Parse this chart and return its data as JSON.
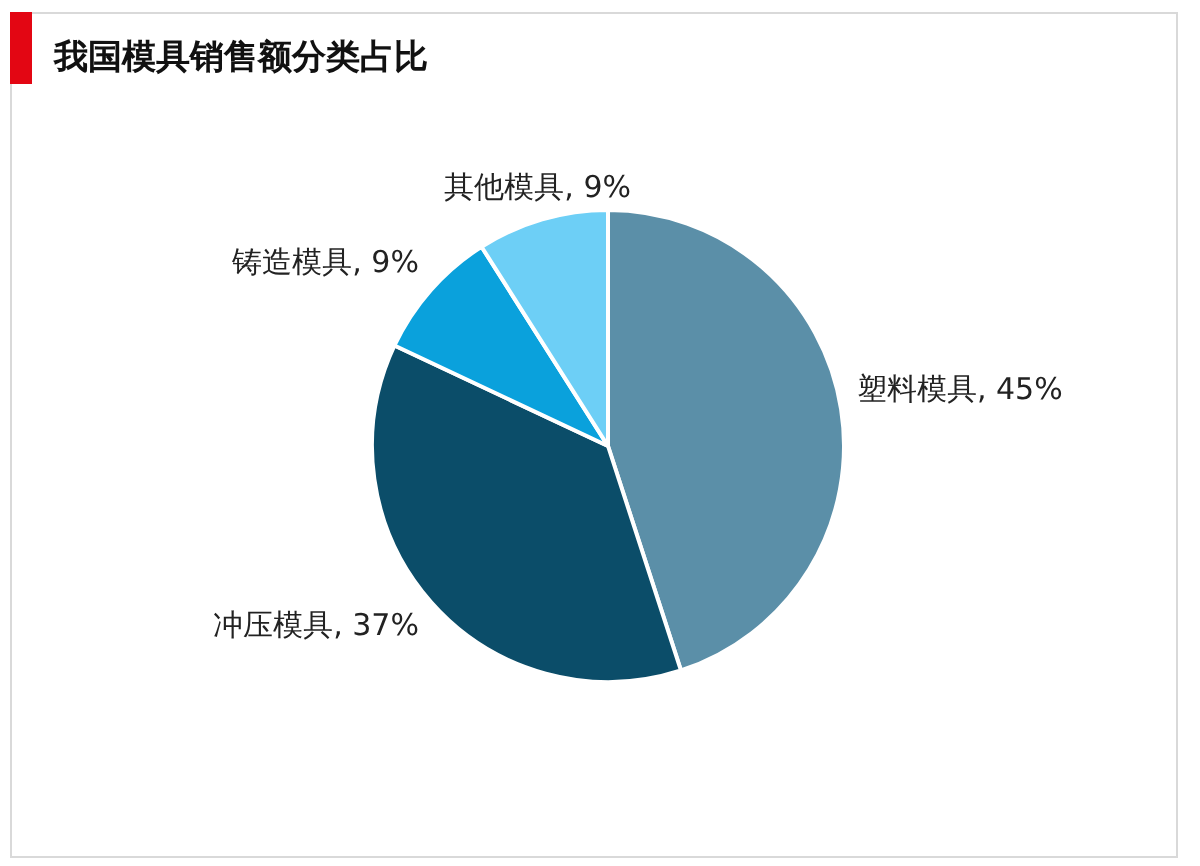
{
  "chart_data": {
    "type": "pie",
    "title": "我国模具销售额分类占比",
    "categories": [
      "塑料模具",
      "冲压模具",
      "铸造模具",
      "其他模具"
    ],
    "values": [
      45,
      37,
      9,
      9
    ],
    "colors": [
      "#5b8fa8",
      "#0b4d69",
      "#0aa1dc",
      "#6dcff6"
    ],
    "value_labels": [
      "45%",
      "37%",
      "9%",
      "9%"
    ]
  }
}
